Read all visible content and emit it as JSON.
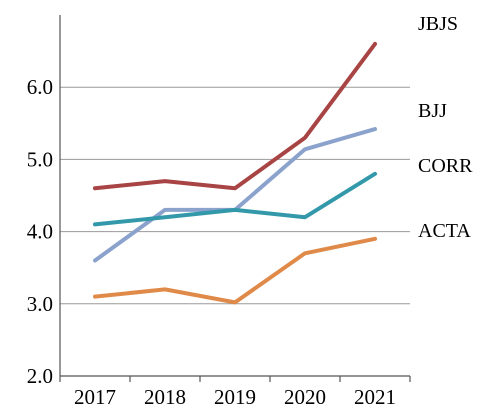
{
  "chart_data": {
    "type": "line",
    "title": "",
    "xlabel": "",
    "ylabel": "",
    "categories": [
      "2017",
      "2018",
      "2019",
      "2020",
      "2021"
    ],
    "ylim": [
      2.0,
      7.0
    ],
    "yticks": [
      "2.0",
      "3.0",
      "4.0",
      "5.0",
      "6.0"
    ],
    "grid": true,
    "legend": "right, labels at line ends",
    "series": [
      {
        "name": "JBJS",
        "color": "#a84444",
        "values": [
          4.6,
          4.7,
          4.6,
          5.3,
          6.6
        ]
      },
      {
        "name": "BJJ",
        "color": "#8aa2cc",
        "values": [
          3.6,
          4.3,
          4.3,
          5.14,
          5.42
        ]
      },
      {
        "name": "CORR",
        "color": "#3399aa",
        "values": [
          4.1,
          4.2,
          4.3,
          4.2,
          4.8
        ]
      },
      {
        "name": "ACTA",
        "color": "#e08a4a",
        "values": [
          3.1,
          3.2,
          3.02,
          3.7,
          3.9
        ]
      }
    ]
  }
}
